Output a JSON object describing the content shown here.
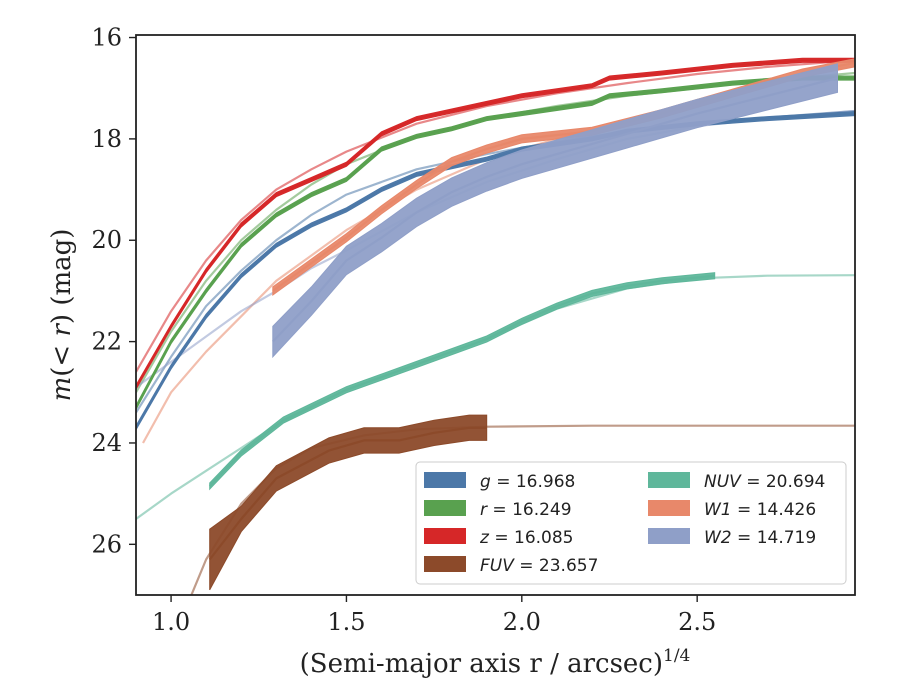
{
  "chart_data": {
    "type": "line",
    "xlabel": "(Semi-major axis r / arcsec)",
    "xlabel_exponent": "1/4",
    "ylabel": "m(< r) (mag)",
    "xlim": [
      0.9,
      2.95
    ],
    "ylim": [
      27.0,
      15.95
    ],
    "y_inverted": true,
    "grid": false,
    "legend_position": "lower-right",
    "legend_columns": 2,
    "x_ticks": [
      1.0,
      1.5,
      2.0,
      2.5
    ],
    "x_tick_labels": [
      "1.0",
      "1.5",
      "2.0",
      "2.5"
    ],
    "y_ticks": [
      16,
      18,
      20,
      22,
      24,
      26
    ],
    "y_tick_labels": [
      "16",
      "18",
      "20",
      "22",
      "24",
      "26"
    ],
    "series": [
      {
        "name": "g = 16.968",
        "label_var": "g",
        "label_value": "16.968",
        "color": "#4c78a8",
        "band_half_width": 0.04,
        "data": [
          [
            0.9,
            23.7
          ],
          [
            1.0,
            22.5
          ],
          [
            1.1,
            21.5
          ],
          [
            1.2,
            20.7
          ],
          [
            1.3,
            20.1
          ],
          [
            1.4,
            19.7
          ],
          [
            1.5,
            19.4
          ],
          [
            1.6,
            19.0
          ],
          [
            1.7,
            18.7
          ],
          [
            1.8,
            18.55
          ],
          [
            1.9,
            18.4
          ],
          [
            2.0,
            18.2
          ],
          [
            2.2,
            18.0
          ],
          [
            2.3,
            17.85
          ],
          [
            2.5,
            17.7
          ],
          [
            2.7,
            17.6
          ],
          [
            2.95,
            17.5
          ]
        ],
        "model": [
          [
            0.9,
            23.4
          ],
          [
            1.0,
            22.3
          ],
          [
            1.1,
            21.3
          ],
          [
            1.2,
            20.6
          ],
          [
            1.3,
            20.0
          ],
          [
            1.4,
            19.5
          ],
          [
            1.5,
            19.1
          ],
          [
            1.7,
            18.6
          ],
          [
            1.9,
            18.3
          ],
          [
            2.1,
            18.05
          ],
          [
            2.3,
            17.85
          ],
          [
            2.5,
            17.7
          ],
          [
            2.7,
            17.58
          ],
          [
            2.95,
            17.45
          ]
        ]
      },
      {
        "name": "r = 16.249",
        "label_var": "r",
        "label_value": "16.249",
        "color": "#59a14f",
        "band_half_width": 0.04,
        "data": [
          [
            0.9,
            23.3
          ],
          [
            1.0,
            22.0
          ],
          [
            1.1,
            21.0
          ],
          [
            1.2,
            20.1
          ],
          [
            1.3,
            19.5
          ],
          [
            1.4,
            19.1
          ],
          [
            1.5,
            18.8
          ],
          [
            1.6,
            18.2
          ],
          [
            1.7,
            17.95
          ],
          [
            1.8,
            17.8
          ],
          [
            1.9,
            17.6
          ],
          [
            2.0,
            17.5
          ],
          [
            2.2,
            17.3
          ],
          [
            2.25,
            17.15
          ],
          [
            2.4,
            17.05
          ],
          [
            2.6,
            16.9
          ],
          [
            2.8,
            16.8
          ],
          [
            2.95,
            16.8
          ]
        ],
        "model": [
          [
            0.9,
            23.0
          ],
          [
            1.0,
            21.8
          ],
          [
            1.1,
            20.8
          ],
          [
            1.2,
            20.0
          ],
          [
            1.3,
            19.4
          ],
          [
            1.4,
            18.9
          ],
          [
            1.5,
            18.5
          ],
          [
            1.7,
            17.95
          ],
          [
            1.9,
            17.6
          ],
          [
            2.1,
            17.35
          ],
          [
            2.3,
            17.15
          ],
          [
            2.5,
            17.0
          ],
          [
            2.7,
            16.85
          ],
          [
            2.95,
            16.7
          ]
        ]
      },
      {
        "name": "z = 16.085",
        "label_var": "z",
        "label_value": "16.085",
        "color": "#d62728",
        "band_half_width": 0.04,
        "data": [
          [
            0.9,
            22.9
          ],
          [
            1.0,
            21.7
          ],
          [
            1.1,
            20.6
          ],
          [
            1.2,
            19.7
          ],
          [
            1.3,
            19.1
          ],
          [
            1.4,
            18.8
          ],
          [
            1.5,
            18.5
          ],
          [
            1.6,
            17.9
          ],
          [
            1.7,
            17.6
          ],
          [
            1.8,
            17.45
          ],
          [
            1.9,
            17.3
          ],
          [
            2.0,
            17.15
          ],
          [
            2.2,
            16.95
          ],
          [
            2.25,
            16.8
          ],
          [
            2.4,
            16.7
          ],
          [
            2.6,
            16.55
          ],
          [
            2.8,
            16.45
          ],
          [
            2.95,
            16.45
          ]
        ],
        "model": [
          [
            0.9,
            22.6
          ],
          [
            1.0,
            21.4
          ],
          [
            1.1,
            20.4
          ],
          [
            1.2,
            19.6
          ],
          [
            1.3,
            19.0
          ],
          [
            1.4,
            18.6
          ],
          [
            1.5,
            18.25
          ],
          [
            1.7,
            17.7
          ],
          [
            1.9,
            17.35
          ],
          [
            2.1,
            17.1
          ],
          [
            2.3,
            16.9
          ],
          [
            2.5,
            16.72
          ],
          [
            2.7,
            16.58
          ],
          [
            2.95,
            16.45
          ]
        ]
      },
      {
        "name": "FUV = 23.657",
        "label_var": "FUV",
        "label_value": "23.657",
        "color": "#8c4a2a",
        "band_half_width": 0.25,
        "band_half_width_edge": 0.6,
        "data": [
          [
            1.11,
            26.3
          ],
          [
            1.2,
            25.5
          ],
          [
            1.3,
            24.7
          ],
          [
            1.45,
            24.15
          ],
          [
            1.55,
            23.95
          ],
          [
            1.65,
            23.95
          ],
          [
            1.75,
            23.8
          ],
          [
            1.85,
            23.7
          ],
          [
            1.9,
            23.7
          ]
        ],
        "model": [
          [
            1.04,
            27.3
          ],
          [
            1.1,
            26.3
          ],
          [
            1.2,
            25.2
          ],
          [
            1.3,
            24.5
          ],
          [
            1.4,
            24.1
          ],
          [
            1.55,
            23.85
          ],
          [
            1.7,
            23.73
          ],
          [
            1.9,
            23.68
          ],
          [
            2.2,
            23.66
          ],
          [
            2.6,
            23.66
          ],
          [
            2.95,
            23.66
          ]
        ]
      },
      {
        "name": "NUV = 20.694",
        "label_var": "NUV",
        "label_value": "20.694",
        "color": "#5fb79b",
        "band_half_width": 0.06,
        "data": [
          [
            1.11,
            24.85
          ],
          [
            1.2,
            24.2
          ],
          [
            1.32,
            23.55
          ],
          [
            1.5,
            22.95
          ],
          [
            1.7,
            22.45
          ],
          [
            1.9,
            21.95
          ],
          [
            2.0,
            21.6
          ],
          [
            2.1,
            21.3
          ],
          [
            2.2,
            21.05
          ],
          [
            2.3,
            20.9
          ],
          [
            2.4,
            20.8
          ],
          [
            2.55,
            20.7
          ]
        ],
        "model": [
          [
            0.9,
            25.5
          ],
          [
            1.0,
            25.0
          ],
          [
            1.1,
            24.55
          ],
          [
            1.2,
            24.1
          ],
          [
            1.3,
            23.65
          ],
          [
            1.5,
            22.95
          ],
          [
            1.7,
            22.45
          ],
          [
            1.9,
            21.95
          ],
          [
            2.1,
            21.35
          ],
          [
            2.3,
            20.95
          ],
          [
            2.5,
            20.75
          ],
          [
            2.7,
            20.7
          ],
          [
            2.95,
            20.69
          ]
        ]
      },
      {
        "name": "W1 = 14.426",
        "label_var": "W1",
        "label_value": "14.426",
        "color": "#e8886a",
        "band_half_width": 0.08,
        "data": [
          [
            1.29,
            21.0
          ],
          [
            1.4,
            20.45
          ],
          [
            1.5,
            19.95
          ],
          [
            1.6,
            19.4
          ],
          [
            1.7,
            18.9
          ],
          [
            1.8,
            18.45
          ],
          [
            1.9,
            18.2
          ],
          [
            2.0,
            18.0
          ],
          [
            2.2,
            17.85
          ],
          [
            2.4,
            17.5
          ],
          [
            2.6,
            17.1
          ],
          [
            2.8,
            16.7
          ],
          [
            2.95,
            16.5
          ]
        ],
        "model": [
          [
            0.92,
            24.0
          ],
          [
            1.0,
            23.0
          ],
          [
            1.1,
            22.2
          ],
          [
            1.2,
            21.5
          ],
          [
            1.3,
            20.8
          ],
          [
            1.4,
            20.3
          ],
          [
            1.5,
            19.8
          ],
          [
            1.7,
            19.0
          ],
          [
            1.9,
            18.4
          ],
          [
            2.1,
            18.0
          ],
          [
            2.3,
            17.65
          ],
          [
            2.5,
            17.3
          ],
          [
            2.7,
            16.9
          ],
          [
            2.95,
            16.55
          ]
        ]
      },
      {
        "name": "W2 = 14.719",
        "label_var": "W2",
        "label_value": "14.719",
        "color": "#8f9fc8",
        "band_half_width": 0.28,
        "band_half_width_edge": 0.3,
        "data": [
          [
            1.29,
            22.0
          ],
          [
            1.4,
            21.2
          ],
          [
            1.5,
            20.4
          ],
          [
            1.6,
            19.95
          ],
          [
            1.7,
            19.45
          ],
          [
            1.8,
            19.05
          ],
          [
            1.9,
            18.75
          ],
          [
            2.0,
            18.5
          ],
          [
            2.1,
            18.3
          ],
          [
            2.2,
            18.1
          ],
          [
            2.3,
            17.9
          ],
          [
            2.5,
            17.5
          ],
          [
            2.7,
            17.15
          ],
          [
            2.9,
            16.8
          ]
        ],
        "model": [
          [
            0.9,
            22.9
          ],
          [
            1.0,
            22.4
          ],
          [
            1.1,
            21.9
          ],
          [
            1.2,
            21.4
          ],
          [
            1.3,
            21.0
          ],
          [
            1.4,
            20.55
          ],
          [
            1.5,
            20.2
          ],
          [
            1.7,
            19.45
          ],
          [
            1.9,
            18.85
          ],
          [
            2.1,
            18.4
          ],
          [
            2.3,
            18.0
          ],
          [
            2.5,
            17.75
          ],
          [
            2.7,
            17.6
          ],
          [
            2.95,
            17.45
          ]
        ]
      }
    ],
    "legend_order": [
      0,
      1,
      2,
      3,
      4,
      5,
      6
    ]
  }
}
